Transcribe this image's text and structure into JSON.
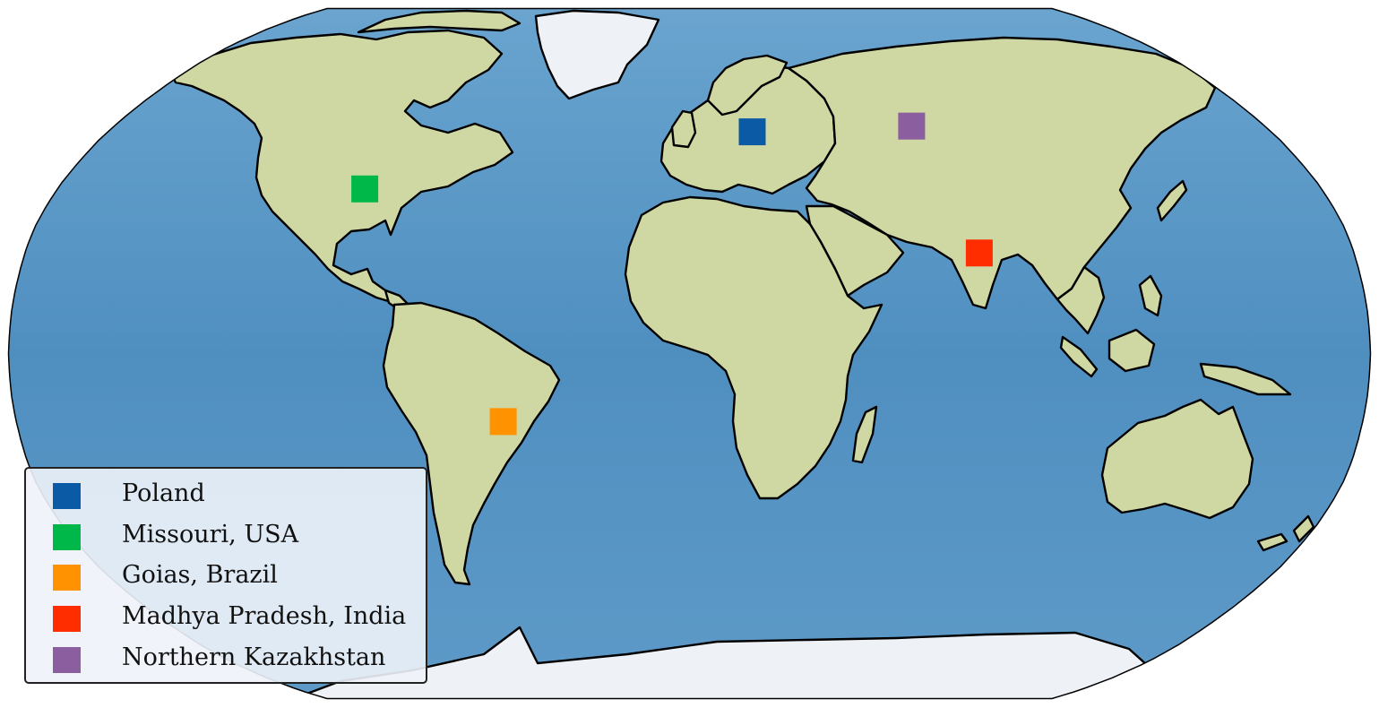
{
  "map": {
    "projection": "Robinson",
    "basemap": "shaded-relief",
    "colors": {
      "ocean": "#4f8fc0",
      "land": "#cfd8a2",
      "ice": "#eef2f6",
      "coastline": "#000000"
    }
  },
  "markers": [
    {
      "id": "poland",
      "label": "Poland",
      "color": "#0b5aa5",
      "lat": 52.1,
      "lon": 19.4
    },
    {
      "id": "missouri",
      "label": "Missouri, USA",
      "color": "#00b84a",
      "lat": 38.5,
      "lon": -92.5
    },
    {
      "id": "goias",
      "label": "Goias, Brazil",
      "color": "#ff9200",
      "lat": -15.9,
      "lon": -49.8
    },
    {
      "id": "madhya-pradesh",
      "label": "Madhya Pradesh, India",
      "color": "#ff2d00",
      "lat": 23.5,
      "lon": 78.5
    },
    {
      "id": "northern-kazakhstan",
      "label": "Northern Kazakhstan",
      "color": "#8b5ea0",
      "lat": 53.5,
      "lon": 69.5
    }
  ],
  "legend": {
    "placement": "lower-left",
    "items": [
      "Poland",
      "Missouri, USA",
      "Goias, Brazil",
      "Madhya Pradesh, India",
      "Northern Kazakhstan"
    ]
  }
}
